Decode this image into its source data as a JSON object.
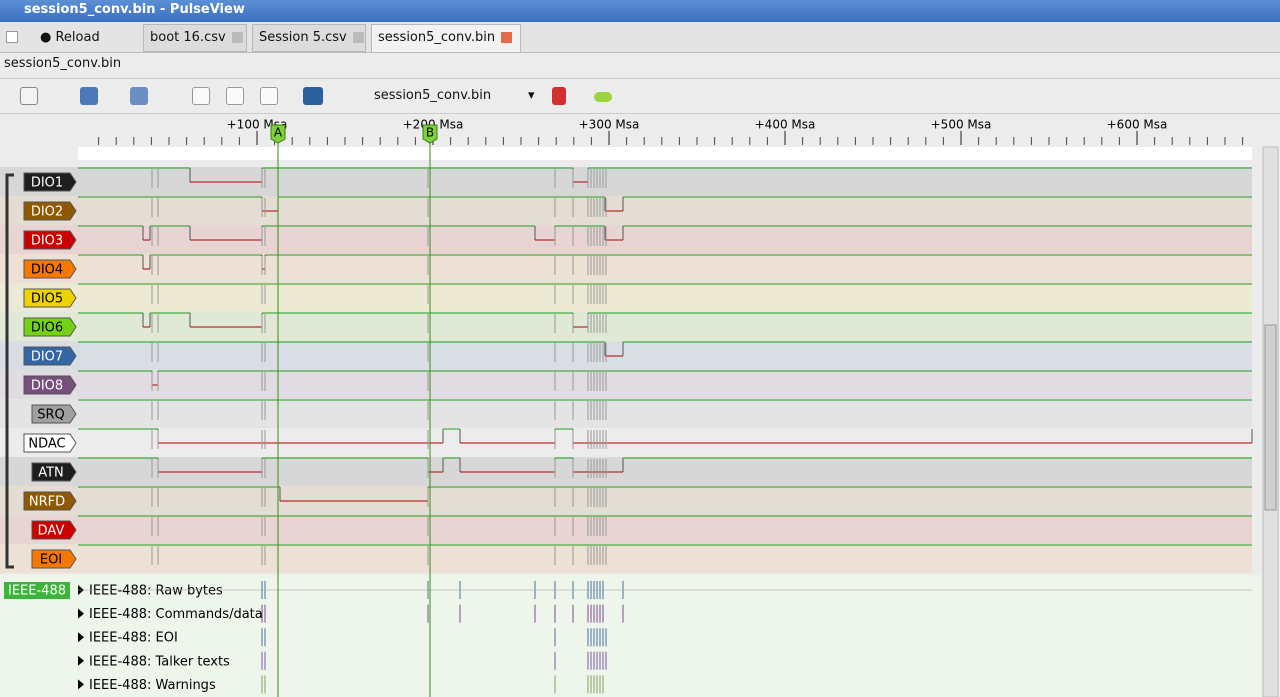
{
  "window": {
    "title": "session5_conv.bin - PulseView"
  },
  "toolbar": {
    "reload": "Reload",
    "device": "session5_conv.bin"
  },
  "tabs": [
    "boot 16.csv",
    "Session 5.csv",
    "session5_conv.bin"
  ],
  "session_label": "session5_conv.bin",
  "ruler": {
    "ticks": [
      "+100 Msa",
      "+200 Msa",
      "+300 Msa",
      "+400 Msa",
      "+500 Msa",
      "+600 Msa"
    ]
  },
  "cursors": [
    "A",
    "B"
  ],
  "channels": [
    {
      "name": "DIO1",
      "color": "#1e1e1e",
      "text_color": "#ffffff"
    },
    {
      "name": "DIO2",
      "color": "#8f5902",
      "text_color": "#ffffff"
    },
    {
      "name": "DIO3",
      "color": "#cc0000",
      "text_color": "#ffffff"
    },
    {
      "name": "DIO4",
      "color": "#f57900",
      "text_color": "#000000"
    },
    {
      "name": "DIO5",
      "color": "#edd400",
      "text_color": "#000000"
    },
    {
      "name": "DIO6",
      "color": "#73d216",
      "text_color": "#000000"
    },
    {
      "name": "DIO7",
      "color": "#3465a4",
      "text_color": "#ffffff"
    },
    {
      "name": "DIO8",
      "color": "#75507b",
      "text_color": "#ffffff"
    },
    {
      "name": "SRQ",
      "color": "#a0a0a0",
      "text_color": "#000000"
    },
    {
      "name": "NDAC",
      "color": "#ffffff",
      "text_color": "#000000"
    },
    {
      "name": "ATN",
      "color": "#1e1e1e",
      "text_color": "#ffffff"
    },
    {
      "name": "NRFD",
      "color": "#8f5902",
      "text_color": "#ffffff"
    },
    {
      "name": "DAV",
      "color": "#cc0000",
      "text_color": "#ffffff"
    },
    {
      "name": "EOI",
      "color": "#f57900",
      "text_color": "#000000"
    }
  ],
  "decoder": {
    "name": "IEEE-488",
    "color": "#3cb43c",
    "rows": [
      "IEEE-488: Raw bytes",
      "IEEE-488: Commands/data",
      "IEEE-488: EOI",
      "IEEE-488: Talker texts",
      "IEEE-488: Warnings"
    ]
  }
}
